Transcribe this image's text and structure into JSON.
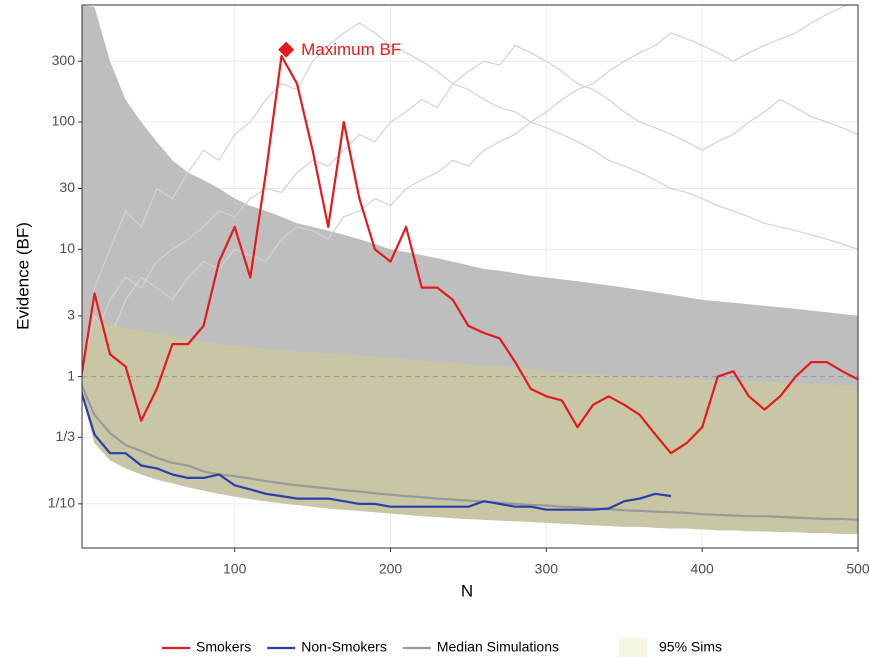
{
  "chart_data": {
    "type": "line",
    "xlabel": "N",
    "ylabel": "Evidence (BF)",
    "log_y": true,
    "grid": true,
    "xlim": [
      2,
      500
    ],
    "ylim": [
      0.045,
      830
    ],
    "xticks": [
      100,
      200,
      300,
      400,
      500
    ],
    "yticks": [
      {
        "value": 0.1,
        "label": "1/10"
      },
      {
        "value": 0.3333,
        "label": "1/3"
      },
      1,
      3,
      10,
      30,
      100,
      300
    ],
    "hline": 1,
    "x": [
      1,
      10,
      20,
      30,
      40,
      50,
      60,
      70,
      80,
      90,
      100,
      110,
      120,
      130,
      140,
      150,
      160,
      170,
      180,
      190,
      200,
      210,
      220,
      230,
      240,
      250,
      260,
      270,
      280,
      290,
      300,
      310,
      320,
      330,
      340,
      350,
      360,
      370,
      380,
      390,
      400,
      410,
      420,
      430,
      440,
      450,
      460,
      470,
      480,
      490,
      500
    ],
    "envelope": {
      "color": "#bebebe",
      "upper": [
        830,
        800,
        300,
        150,
        100,
        70,
        50,
        40,
        35,
        30,
        25,
        22,
        20,
        18,
        16,
        15,
        14,
        13,
        12,
        11,
        10,
        9.5,
        9,
        8.5,
        8,
        7.5,
        7,
        6.8,
        6.5,
        6.2,
        6,
        5.8,
        5.6,
        5.4,
        5.2,
        5,
        4.8,
        4.6,
        4.4,
        4.2,
        4,
        3.9,
        3.8,
        3.7,
        3.6,
        3.5,
        3.4,
        3.3,
        3.2,
        3.1,
        3
      ]
    },
    "band": {
      "name": "95% Sims",
      "color": "#c9c6a6",
      "legend_color": "#f7f7e1",
      "upper": [
        1.1,
        2.7,
        2.6,
        2.4,
        2.3,
        2.2,
        2.1,
        2.0,
        1.9,
        1.8,
        1.75,
        1.7,
        1.65,
        1.6,
        1.58,
        1.55,
        1.52,
        1.5,
        1.47,
        1.44,
        1.4,
        1.37,
        1.34,
        1.3,
        1.28,
        1.25,
        1.22,
        1.2,
        1.17,
        1.14,
        1.1,
        1.08,
        1.06,
        1.04,
        1.02,
        1.0,
        0.99,
        0.98,
        0.97,
        0.96,
        0.95,
        0.94,
        0.93,
        0.92,
        0.91,
        0.9,
        0.89,
        0.88,
        0.87,
        0.86,
        0.85
      ],
      "lower": [
        0.8,
        0.3,
        0.22,
        0.19,
        0.17,
        0.155,
        0.145,
        0.135,
        0.127,
        0.12,
        0.114,
        0.109,
        0.105,
        0.101,
        0.098,
        0.095,
        0.092,
        0.09,
        0.088,
        0.086,
        0.084,
        0.082,
        0.08,
        0.079,
        0.077,
        0.076,
        0.075,
        0.074,
        0.073,
        0.072,
        0.071,
        0.07,
        0.069,
        0.068,
        0.067,
        0.066,
        0.066,
        0.065,
        0.064,
        0.064,
        0.063,
        0.062,
        0.062,
        0.061,
        0.061,
        0.06,
        0.06,
        0.059,
        0.059,
        0.058,
        0.058
      ]
    },
    "simulations": [
      {
        "color": "#d3d3d3",
        "values": [
          1,
          2,
          4,
          6,
          5,
          8,
          10,
          12,
          15,
          20,
          18,
          25,
          30,
          28,
          40,
          50,
          45,
          60,
          80,
          70,
          100,
          120,
          150,
          130,
          200,
          250,
          300,
          280,
          400,
          350,
          300,
          250,
          200,
          180,
          150,
          120,
          100,
          90,
          80,
          70,
          60,
          70,
          80,
          100,
          120,
          150,
          130,
          110,
          100,
          90,
          80
        ]
      },
      {
        "color": "#d3d3d3",
        "values": [
          1,
          3,
          2,
          4,
          6,
          5,
          4,
          6,
          8,
          7,
          10,
          9,
          8,
          12,
          15,
          14,
          12,
          18,
          20,
          25,
          22,
          30,
          35,
          40,
          50,
          45,
          60,
          70,
          80,
          100,
          120,
          150,
          180,
          200,
          250,
          300,
          350,
          400,
          500,
          450,
          400,
          350,
          300,
          350,
          400,
          450,
          500,
          600,
          700,
          800,
          900
        ]
      },
      {
        "color": "#d3d3d3",
        "values": [
          1,
          5,
          10,
          20,
          15,
          30,
          25,
          40,
          60,
          50,
          80,
          100,
          150,
          200,
          180,
          300,
          400,
          500,
          600,
          500,
          400,
          350,
          300,
          250,
          200,
          180,
          150,
          130,
          120,
          100,
          90,
          80,
          70,
          60,
          50,
          45,
          40,
          35,
          30,
          28,
          25,
          22,
          20,
          18,
          16,
          15,
          14,
          13,
          12,
          11,
          10
        ]
      }
    ],
    "series": [
      {
        "name": "Smokers",
        "color": "#e41a1c",
        "values": [
          0.9,
          4.5,
          1.5,
          1.2,
          0.45,
          0.8,
          1.8,
          1.8,
          2.5,
          8,
          15,
          6,
          40,
          330,
          200,
          60,
          15,
          100,
          25,
          10,
          8,
          15,
          5,
          5,
          4,
          2.5,
          2.2,
          2.0,
          1.3,
          0.8,
          0.7,
          0.65,
          0.4,
          0.6,
          0.7,
          0.6,
          0.5,
          0.35,
          0.25,
          0.3,
          0.4,
          1.0,
          1.1,
          0.7,
          0.55,
          0.7,
          1.0,
          1.3,
          1.3,
          1.1,
          0.95
        ]
      },
      {
        "name": "Non-Smokers",
        "color": "#2b3fa8",
        "values": [
          0.8,
          0.35,
          0.25,
          0.25,
          0.2,
          0.19,
          0.17,
          0.16,
          0.16,
          0.17,
          0.14,
          0.13,
          0.12,
          0.115,
          0.11,
          0.11,
          0.11,
          0.105,
          0.1,
          0.1,
          0.095,
          0.095,
          0.095,
          0.095,
          0.095,
          0.095,
          0.105,
          0.1,
          0.095,
          0.095,
          0.09,
          0.09,
          0.09,
          0.09,
          0.092,
          0.105,
          0.11,
          0.12,
          0.115,
          null,
          null,
          null,
          null,
          null,
          null,
          null,
          null,
          null,
          null,
          null,
          null
        ]
      },
      {
        "name": "Median Simulations",
        "color": "#999999",
        "values": [
          0.9,
          0.5,
          0.36,
          0.29,
          0.26,
          0.23,
          0.21,
          0.2,
          0.18,
          0.17,
          0.165,
          0.158,
          0.151,
          0.145,
          0.14,
          0.136,
          0.132,
          0.128,
          0.125,
          0.121,
          0.118,
          0.115,
          0.113,
          0.11,
          0.108,
          0.106,
          0.104,
          0.102,
          0.1,
          0.098,
          0.097,
          0.095,
          0.094,
          0.092,
          0.091,
          0.089,
          0.088,
          0.087,
          0.086,
          0.085,
          0.083,
          0.082,
          0.081,
          0.08,
          0.08,
          0.079,
          0.078,
          0.077,
          0.076,
          0.076,
          0.075
        ]
      }
    ],
    "annotation": {
      "text": "Maximum BF",
      "x": 133,
      "y": 370,
      "color": "#e41a1c"
    }
  }
}
